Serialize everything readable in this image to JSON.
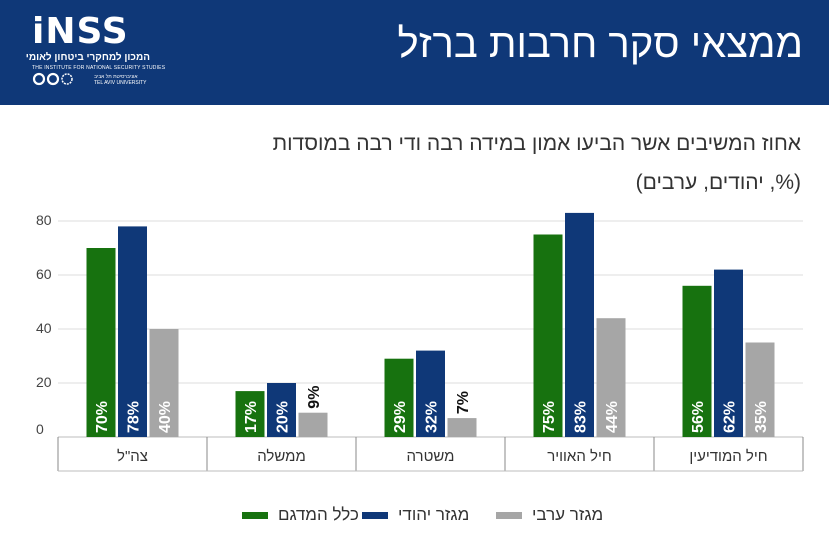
{
  "header": {
    "title": "ממצאי סקר חרבות ברזל",
    "logo_word": "iNSS",
    "logo_hebrew": "המכון למחקרי ביטחון לאומי",
    "logo_english": "THE INSTITUTE FOR NATIONAL SECURITY STUDIES",
    "logo_university_hebrew": "אוניברסיטת תל אביב",
    "logo_university_english": "TEL AVIV UNIVERSITY"
  },
  "subtitle": {
    "line1": "אחוז המשיבים אשר הביעו אמון במידה רבה ודי רבה במוסדות",
    "line2": "(%, יהודים, ערבים)"
  },
  "chart_data": {
    "type": "bar",
    "categories": [
      "צה\"ל",
      "ממשלה",
      "משטרה",
      "חיל האוויר",
      "חיל המודיעין"
    ],
    "series": [
      {
        "name": "כלל המדגם",
        "color": "#17720f",
        "values": [
          70,
          17,
          29,
          75,
          56
        ],
        "labels": [
          "70%",
          "17%",
          "29%",
          "75%",
          "56%"
        ]
      },
      {
        "name": "מגזר יהודי",
        "color": "#0f3878",
        "values": [
          78,
          20,
          32,
          83,
          62
        ],
        "labels": [
          "78%",
          "20%",
          "32%",
          "83%",
          "62%"
        ]
      },
      {
        "name": "מגזר ערבי",
        "color": "#a6a6a6",
        "values": [
          40,
          9,
          7,
          44,
          35
        ],
        "labels": [
          "40%",
          "9%",
          "7%",
          "44%",
          "35%"
        ]
      }
    ],
    "ylim": [
      0,
      80
    ],
    "yticks": [
      "0",
      "20",
      "40",
      "60",
      "80"
    ],
    "grid": true,
    "legend_position": "bottom"
  }
}
